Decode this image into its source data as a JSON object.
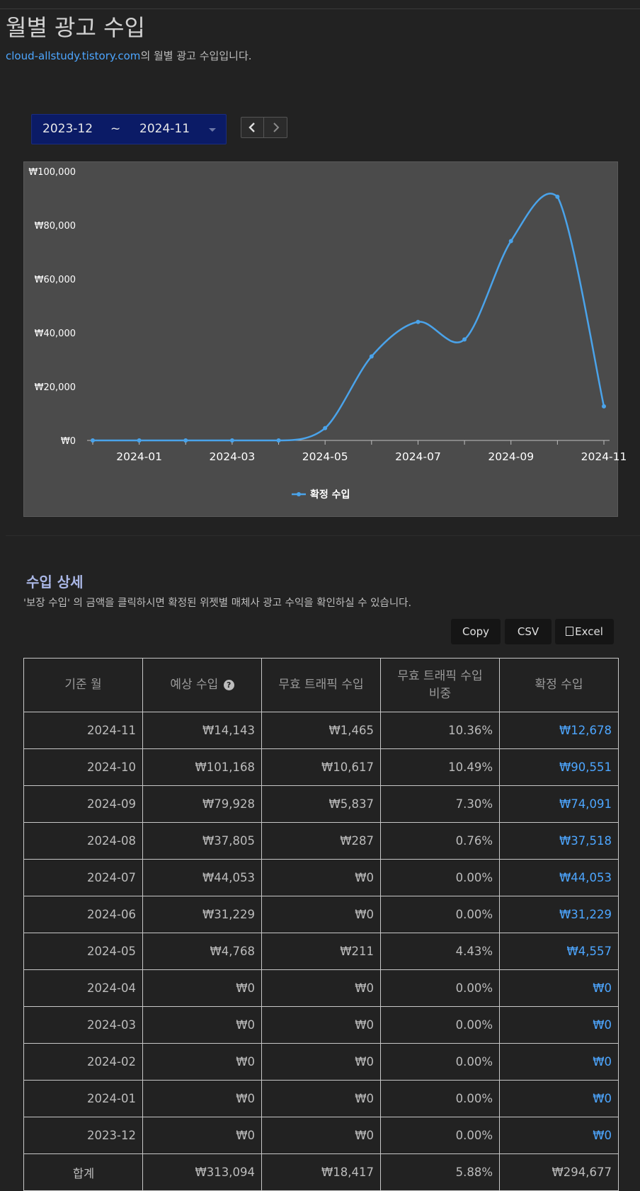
{
  "header": {
    "title": "월별 광고 수입",
    "site_link": "cloud-allstudy.tistory.com",
    "subtitle_suffix": "의 월별 광고 수입입니다."
  },
  "range": {
    "from": "2023-12",
    "tilde": "~",
    "to": "2024-11"
  },
  "icons": {
    "prev": "chevron-left-icon",
    "next": "chevron-right-icon",
    "excel": "file-excel-icon",
    "help": "question-circle-icon"
  },
  "colors": {
    "line": "#4aa3ea",
    "link": "#4da6ff",
    "range_bg": "#0b1b66",
    "chart_bg": "#4b4b4b"
  },
  "chart_data": {
    "type": "line",
    "x": [
      "2023-12",
      "2024-01",
      "2024-02",
      "2024-03",
      "2024-04",
      "2024-05",
      "2024-06",
      "2024-07",
      "2024-08",
      "2024-09",
      "2024-10",
      "2024-11"
    ],
    "x_tick_labels": [
      "2024-01",
      "2024-03",
      "2024-05",
      "2024-07",
      "2024-09",
      "2024-11"
    ],
    "series": [
      {
        "name": "확정 수입",
        "values": [
          0,
          0,
          0,
          0,
          0,
          4557,
          31229,
          44053,
          37518,
          74091,
          90551,
          12678
        ]
      }
    ],
    "y_tick_labels": [
      "₩0",
      "₩20,000",
      "₩40,000",
      "₩60,000",
      "₩80,000",
      "₩100,000"
    ],
    "ylim": [
      0,
      100000
    ],
    "grid": false,
    "legend": "bottom-center"
  },
  "detail": {
    "title": "수입 상세",
    "description": "'보장 수입' 의 금액을 클릭하시면 확정된 위젯별 매체사 광고 수익을 확인하실 수 있습니다.",
    "buttons": {
      "copy": "Copy",
      "csv": "CSV",
      "excel": "Excel"
    },
    "headers": {
      "month": "기준 월",
      "expected": "예상 수입",
      "invalid": "무효 트래픽 수입",
      "ratio_line1": "무효 트래픽 수입",
      "ratio_line2": "비중",
      "confirmed": "확정 수입"
    },
    "rows": [
      [
        "2024-11",
        "₩14,143",
        "₩1,465",
        "10.36%",
        "₩12,678"
      ],
      [
        "2024-10",
        "₩101,168",
        "₩10,617",
        "10.49%",
        "₩90,551"
      ],
      [
        "2024-09",
        "₩79,928",
        "₩5,837",
        "7.30%",
        "₩74,091"
      ],
      [
        "2024-08",
        "₩37,805",
        "₩287",
        "0.76%",
        "₩37,518"
      ],
      [
        "2024-07",
        "₩44,053",
        "₩0",
        "0.00%",
        "₩44,053"
      ],
      [
        "2024-06",
        "₩31,229",
        "₩0",
        "0.00%",
        "₩31,229"
      ],
      [
        "2024-05",
        "₩4,768",
        "₩211",
        "4.43%",
        "₩4,557"
      ],
      [
        "2024-04",
        "₩0",
        "₩0",
        "0.00%",
        "₩0"
      ],
      [
        "2024-03",
        "₩0",
        "₩0",
        "0.00%",
        "₩0"
      ],
      [
        "2024-02",
        "₩0",
        "₩0",
        "0.00%",
        "₩0"
      ],
      [
        "2024-01",
        "₩0",
        "₩0",
        "0.00%",
        "₩0"
      ],
      [
        "2023-12",
        "₩0",
        "₩0",
        "0.00%",
        "₩0"
      ]
    ],
    "total": [
      "합계",
      "₩313,094",
      "₩18,417",
      "5.88%",
      "₩294,677"
    ]
  }
}
